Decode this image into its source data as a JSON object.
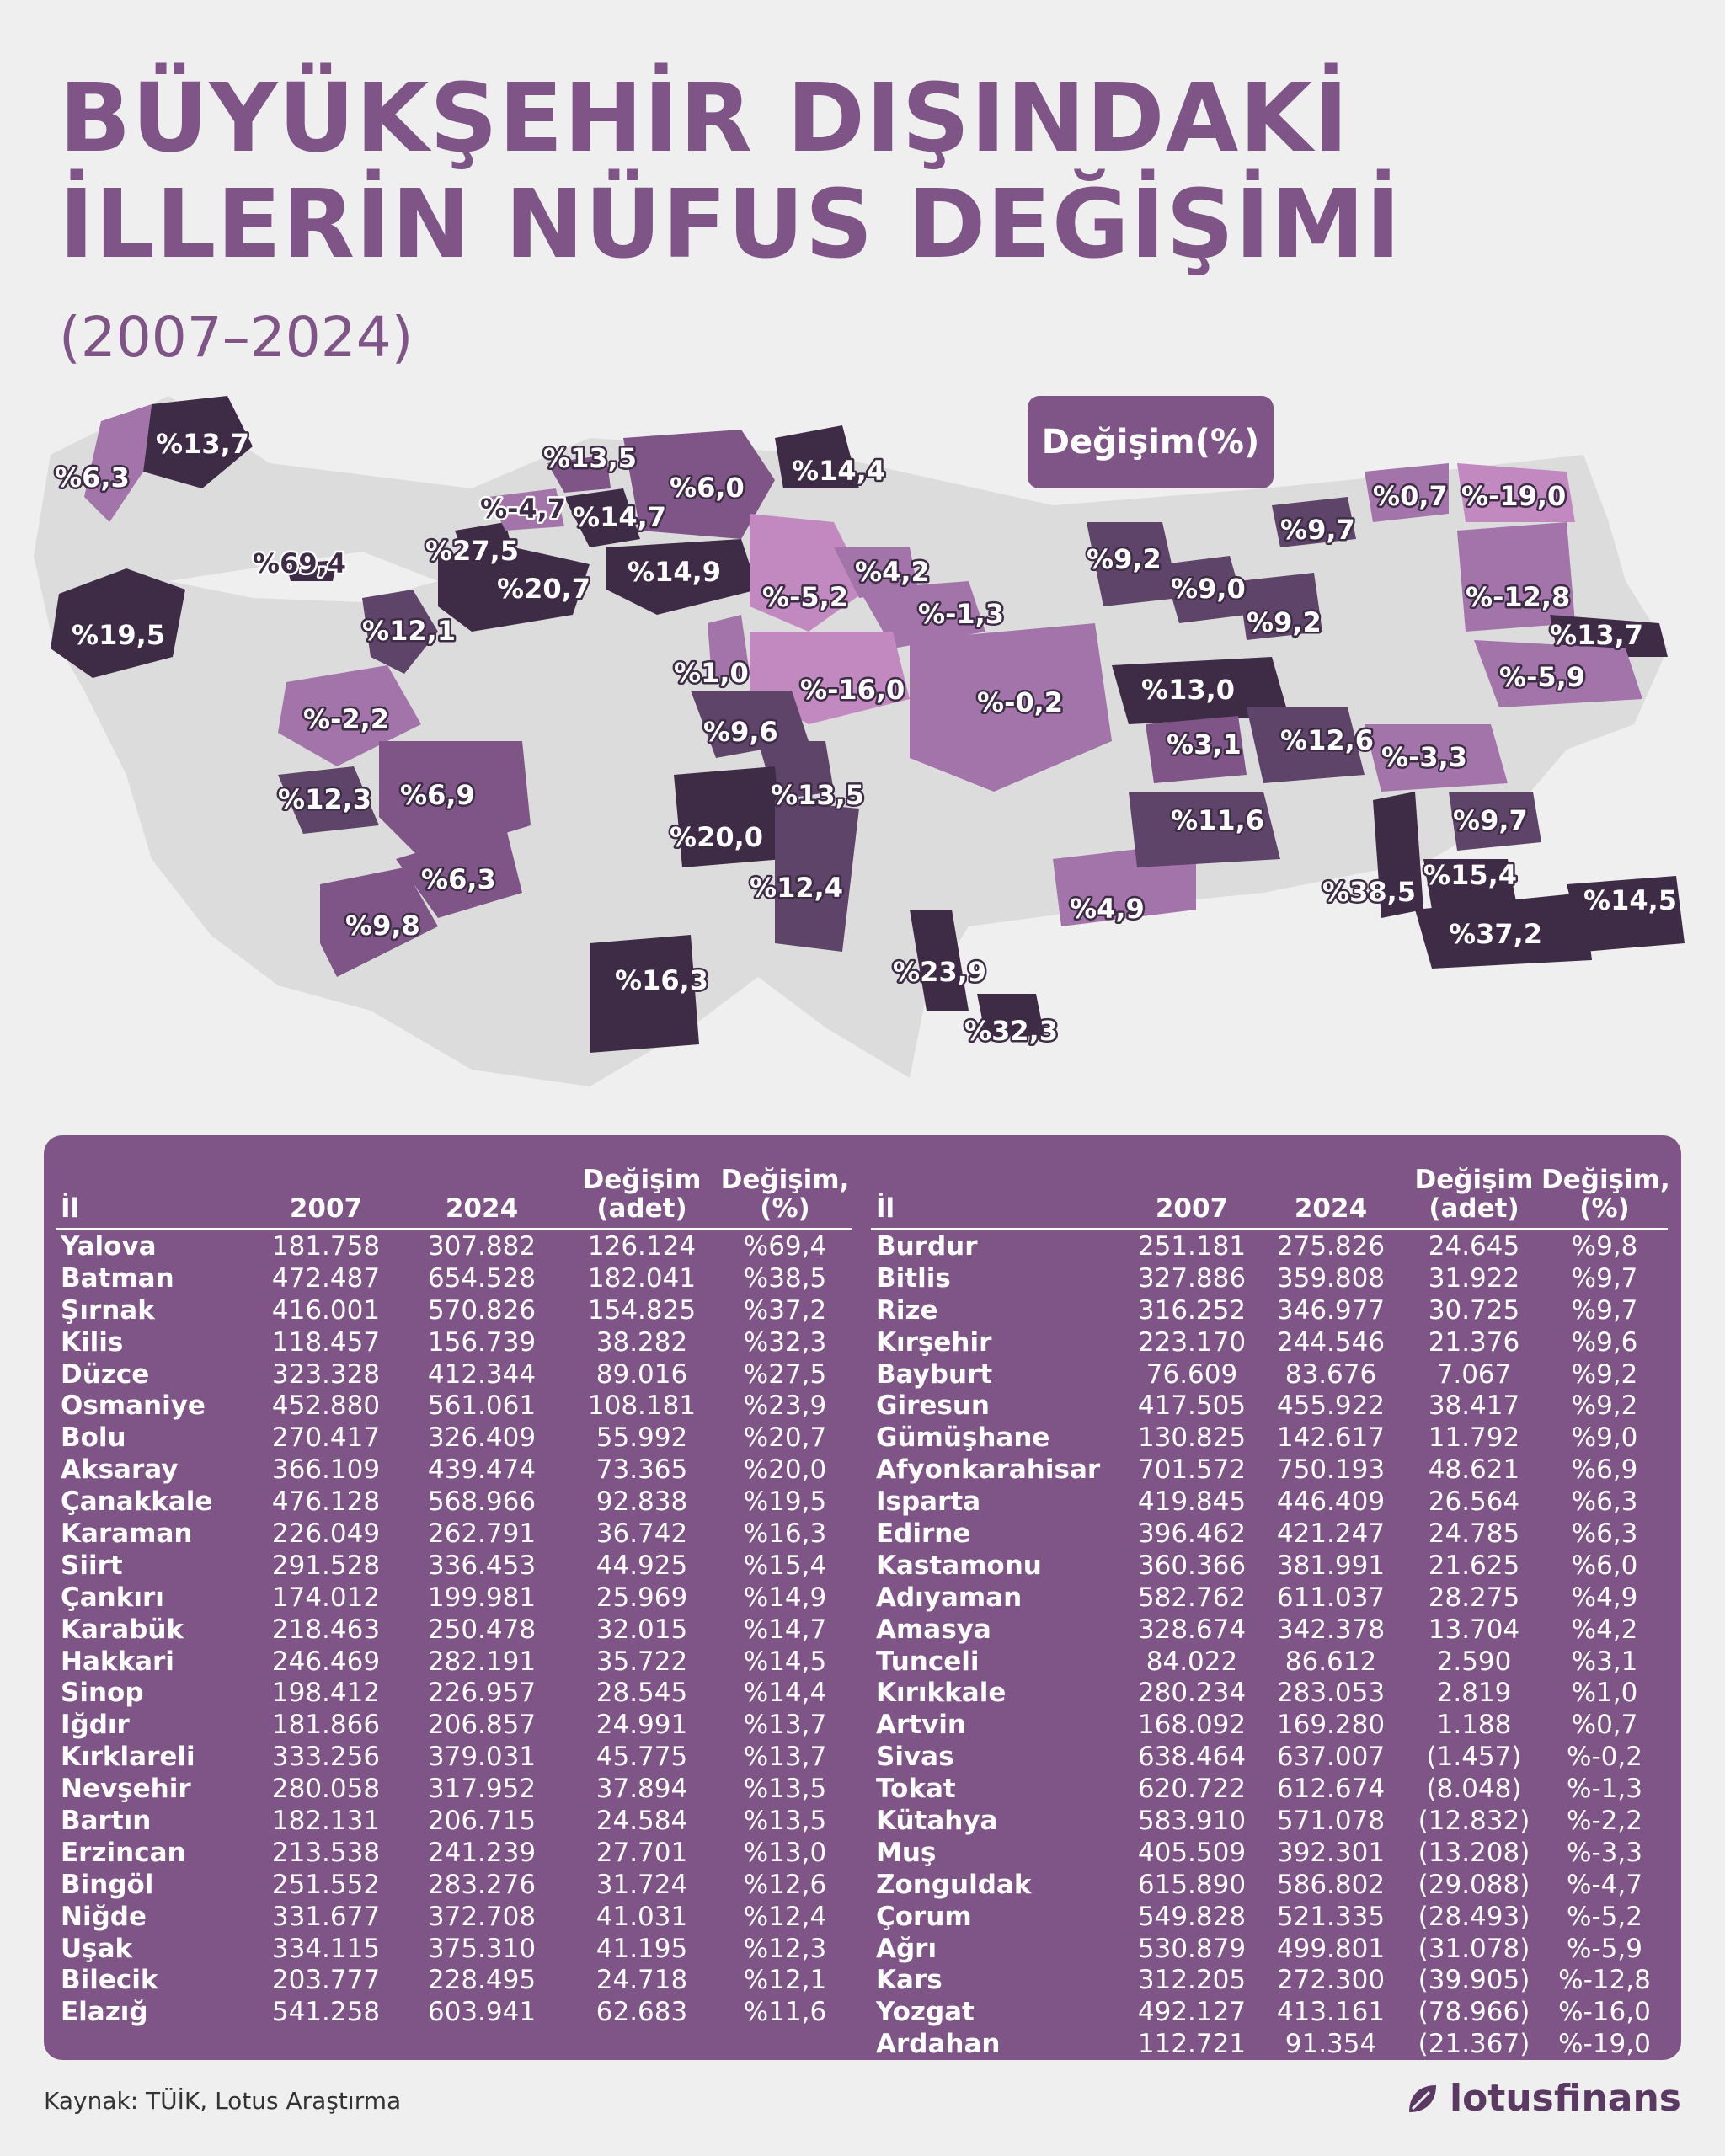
{
  "title_line1": "BÜYÜKŞEHİR DIŞINDAKİ",
  "title_line2": "İLLERİN NÜFUS DEĞİŞİMİ",
  "subtitle": "(2007–2024)",
  "legend_label": "Değişim(%)",
  "colors": {
    "bg": "#efefef",
    "accent": "#7e5586",
    "darkest": "#3e2b46",
    "dark": "#5e4468",
    "mid": "#7e5586",
    "light": "#a274aa",
    "pink": "#c289c1"
  },
  "map_labels": {
    "kirklareli": "%13,7",
    "edirne": "%6,3",
    "yalova": "%69,4",
    "canakkale": "%19,5",
    "duzce": "%27,5",
    "bolu": "%20,7",
    "bartin": "%13,5",
    "zonguldak": "%-4,7",
    "karabuk": "%14,7",
    "kastamonu": "%6,0",
    "sinop": "%14,4",
    "cankiri": "%14,9",
    "bilecik": "%12,1",
    "corum": "%-5,2",
    "amasya": "%4,2",
    "tokat": "%-1,3",
    "kirikkale": "%1,0",
    "yozgat": "%-16,0",
    "sivas": "%-0,2",
    "kutahya": "%-2,2",
    "usak": "%12,3",
    "afyon": "%6,9",
    "isparta": "%6,3",
    "burdur": "%9,8",
    "kirsehir": "%9,6",
    "nevsehir": "%13,5",
    "aksaray": "%20,0",
    "nigde": "%12,4",
    "karaman": "%16,3",
    "osmaniye": "%23,9",
    "kilis": "%32,3",
    "adiyaman": "%4,9",
    "giresun": "%9,2",
    "gumushane": "%9,0",
    "bayburt": "%9,2",
    "rize": "%9,7",
    "artvin": "%0,7",
    "ardahan": "%-19,0",
    "kars": "%-12,8",
    "igdir": "%13,7",
    "agri": "%-5,9",
    "erzincan": "%13,0",
    "tunceli": "%3,1",
    "bingol": "%12,6",
    "mus": "%-3,3",
    "elazig": "%11,6",
    "bitlis": "%9,7",
    "siirt": "%15,4",
    "batman": "%38,5",
    "sirnak": "%37,2",
    "hakkari": "%14,5"
  },
  "table": {
    "headers": [
      "İl",
      "2007",
      "2024",
      "Değişim (adet)",
      "Değişim, (%)"
    ],
    "header_lines": {
      "c4a": "Değişim",
      "c4b": "(adet)",
      "c5a": "Değişim,",
      "c5b": "(%)"
    },
    "left_rows": [
      [
        "Yalova",
        "181.758",
        "307.882",
        "126.124",
        "%69,4"
      ],
      [
        "Batman",
        "472.487",
        "654.528",
        "182.041",
        "%38,5"
      ],
      [
        "Şırnak",
        "416.001",
        "570.826",
        "154.825",
        "%37,2"
      ],
      [
        "Kilis",
        "118.457",
        "156.739",
        "38.282",
        "%32,3"
      ],
      [
        "Düzce",
        "323.328",
        "412.344",
        "89.016",
        "%27,5"
      ],
      [
        "Osmaniye",
        "452.880",
        "561.061",
        "108.181",
        "%23,9"
      ],
      [
        "Bolu",
        "270.417",
        "326.409",
        "55.992",
        "%20,7"
      ],
      [
        "Aksaray",
        "366.109",
        "439.474",
        "73.365",
        "%20,0"
      ],
      [
        "Çanakkale",
        "476.128",
        "568.966",
        "92.838",
        "%19,5"
      ],
      [
        "Karaman",
        "226.049",
        "262.791",
        "36.742",
        "%16,3"
      ],
      [
        "Siirt",
        "291.528",
        "336.453",
        "44.925",
        "%15,4"
      ],
      [
        "Çankırı",
        "174.012",
        "199.981",
        "25.969",
        "%14,9"
      ],
      [
        "Karabük",
        "218.463",
        "250.478",
        "32.015",
        "%14,7"
      ],
      [
        "Hakkari",
        "246.469",
        "282.191",
        "35.722",
        "%14,5"
      ],
      [
        "Sinop",
        "198.412",
        "226.957",
        "28.545",
        "%14,4"
      ],
      [
        "Iğdır",
        "181.866",
        "206.857",
        "24.991",
        "%13,7"
      ],
      [
        "Kırklareli",
        "333.256",
        "379.031",
        "45.775",
        "%13,7"
      ],
      [
        "Nevşehir",
        "280.058",
        "317.952",
        "37.894",
        "%13,5"
      ],
      [
        "Bartın",
        "182.131",
        "206.715",
        "24.584",
        "%13,5"
      ],
      [
        "Erzincan",
        "213.538",
        "241.239",
        "27.701",
        "%13,0"
      ],
      [
        "Bingöl",
        "251.552",
        "283.276",
        "31.724",
        "%12,6"
      ],
      [
        "Niğde",
        "331.677",
        "372.708",
        "41.031",
        "%12,4"
      ],
      [
        "Uşak",
        "334.115",
        "375.310",
        "41.195",
        "%12,3"
      ],
      [
        "Bilecik",
        "203.777",
        "228.495",
        "24.718",
        "%12,1"
      ],
      [
        "Elazığ",
        "541.258",
        "603.941",
        "62.683",
        "%11,6"
      ]
    ],
    "right_rows": [
      [
        "Burdur",
        "251.181",
        "275.826",
        "24.645",
        "%9,8"
      ],
      [
        "Bitlis",
        "327.886",
        "359.808",
        "31.922",
        "%9,7"
      ],
      [
        "Rize",
        "316.252",
        "346.977",
        "30.725",
        "%9,7"
      ],
      [
        "Kırşehir",
        "223.170",
        "244.546",
        "21.376",
        "%9,6"
      ],
      [
        "Bayburt",
        "76.609",
        "83.676",
        "7.067",
        "%9,2"
      ],
      [
        "Giresun",
        "417.505",
        "455.922",
        "38.417",
        "%9,2"
      ],
      [
        "Gümüşhane",
        "130.825",
        "142.617",
        "11.792",
        "%9,0"
      ],
      [
        "Afyonkarahisar",
        "701.572",
        "750.193",
        "48.621",
        "%6,9"
      ],
      [
        "Isparta",
        "419.845",
        "446.409",
        "26.564",
        "%6,3"
      ],
      [
        "Edirne",
        "396.462",
        "421.247",
        "24.785",
        "%6,3"
      ],
      [
        "Kastamonu",
        "360.366",
        "381.991",
        "21.625",
        "%6,0"
      ],
      [
        "Adıyaman",
        "582.762",
        "611.037",
        "28.275",
        "%4,9"
      ],
      [
        "Amasya",
        "328.674",
        "342.378",
        "13.704",
        "%4,2"
      ],
      [
        "Tunceli",
        "84.022",
        "86.612",
        "2.590",
        "%3,1"
      ],
      [
        "Kırıkkale",
        "280.234",
        "283.053",
        "2.819",
        "%1,0"
      ],
      [
        "Artvin",
        "168.092",
        "169.280",
        "1.188",
        "%0,7"
      ],
      [
        "Sivas",
        "638.464",
        "637.007",
        "(1.457)",
        "%-0,2"
      ],
      [
        "Tokat",
        "620.722",
        "612.674",
        "(8.048)",
        "%-1,3"
      ],
      [
        "Kütahya",
        "583.910",
        "571.078",
        "(12.832)",
        "%-2,2"
      ],
      [
        "Muş",
        "405.509",
        "392.301",
        "(13.208)",
        "%-3,3"
      ],
      [
        "Zonguldak",
        "615.890",
        "586.802",
        "(29.088)",
        "%-4,7"
      ],
      [
        "Çorum",
        "549.828",
        "521.335",
        "(28.493)",
        "%-5,2"
      ],
      [
        "Ağrı",
        "530.879",
        "499.801",
        "(31.078)",
        "%-5,9"
      ],
      [
        "Kars",
        "312.205",
        "272.300",
        "(39.905)",
        "%-12,8"
      ],
      [
        "Yozgat",
        "492.127",
        "413.161",
        "(78.966)",
        "%-16,0"
      ],
      [
        "Ardahan",
        "112.721",
        "91.354",
        "(21.367)",
        "%-19,0"
      ]
    ]
  },
  "source": "Kaynak: TÜİK, Lotus Araştırma",
  "brand": "lotusfinans"
}
